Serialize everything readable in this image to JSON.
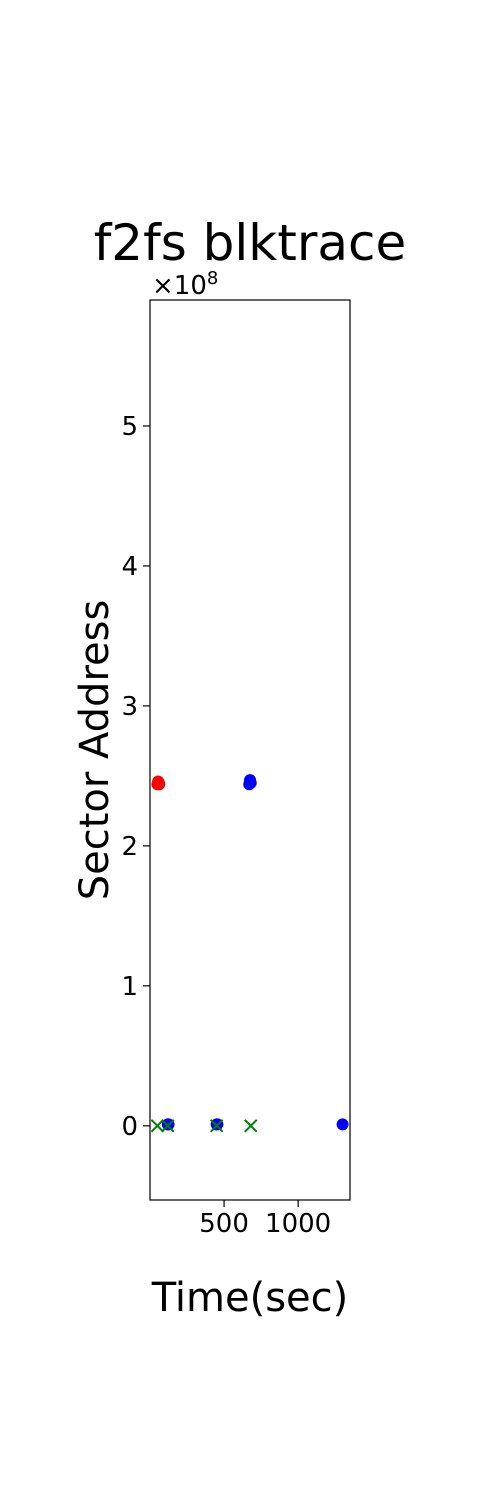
{
  "chart_data": {
    "type": "scatter",
    "title": "f2fs blktrace",
    "xlabel": "Time(sec)",
    "ylabel": "Sector Address",
    "y_multiplier": "×10",
    "y_exponent": "8",
    "xlim": [
      0,
      1350
    ],
    "ylim": [
      -0.53,
      5.9
    ],
    "x_ticks": [
      500,
      1000
    ],
    "y_ticks": [
      0,
      1,
      2,
      3,
      4,
      5
    ],
    "grid": false,
    "series": [
      {
        "color": "#ff0000",
        "marker": "circle",
        "points": [
          [
            50,
            2.44
          ],
          [
            55,
            2.46
          ],
          [
            60,
            2.45
          ],
          [
            62,
            2.44
          ]
        ]
      },
      {
        "color": "#0000ff",
        "marker": "circle",
        "points": [
          [
            120,
            0.01
          ],
          [
            125,
            0.01
          ],
          [
            450,
            0.01
          ],
          [
            455,
            0.01
          ],
          [
            670,
            2.44
          ],
          [
            675,
            2.47
          ],
          [
            680,
            2.45
          ],
          [
            1300,
            0.01
          ]
        ]
      },
      {
        "color": "#008000",
        "marker": "x",
        "points": [
          [
            50,
            0.0
          ],
          [
            120,
            0.0
          ],
          [
            450,
            0.0
          ],
          [
            680,
            0.0
          ]
        ]
      }
    ]
  }
}
